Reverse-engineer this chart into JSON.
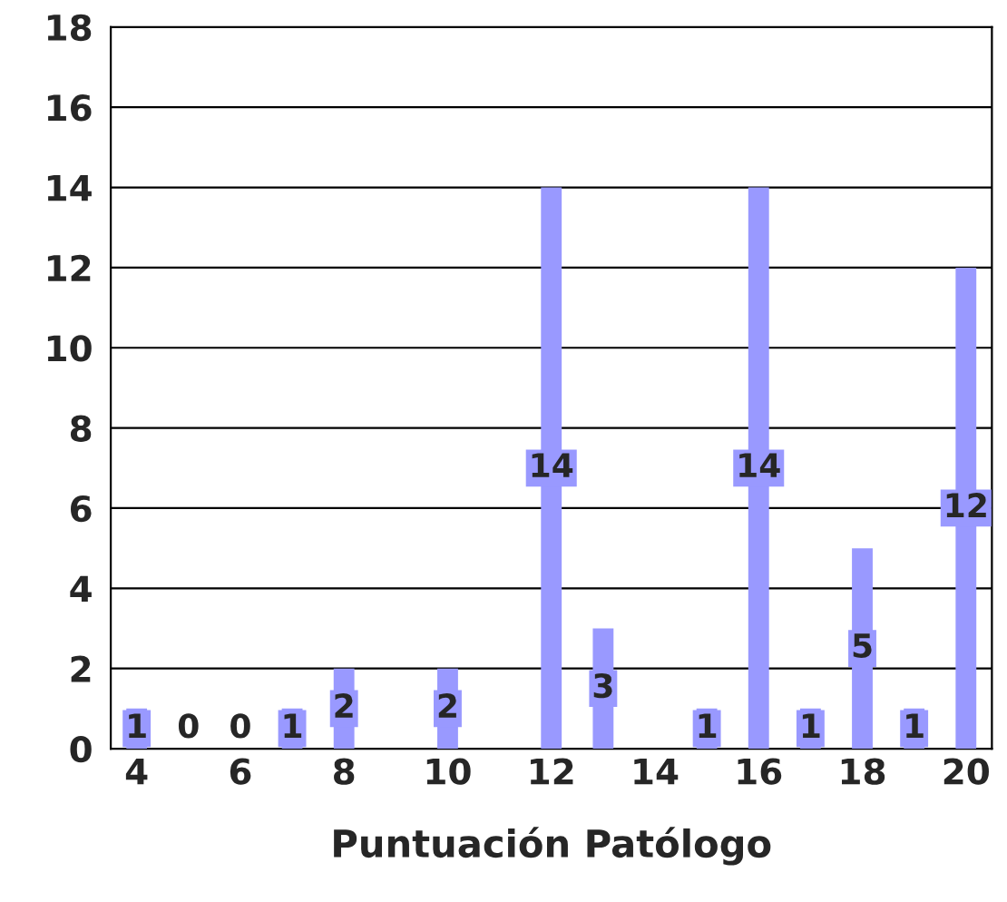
{
  "chart_data": {
    "type": "bar",
    "xlabel": "Puntuación Patólogo",
    "categories": [
      "4",
      null,
      "6",
      null,
      "8",
      null,
      "10",
      null,
      "12",
      null,
      "14",
      null,
      "16",
      null,
      "18",
      null,
      "20"
    ],
    "values": [
      1,
      0,
      0,
      1,
      2,
      null,
      2,
      null,
      14,
      3,
      null,
      1,
      14,
      1,
      5,
      1,
      12
    ],
    "color": "#9999ff",
    "ylim": [
      0,
      18
    ],
    "yticks": [
      0,
      2,
      4,
      6,
      8,
      10,
      12,
      14,
      16,
      18
    ],
    "grid": "y",
    "data_labels": true
  }
}
